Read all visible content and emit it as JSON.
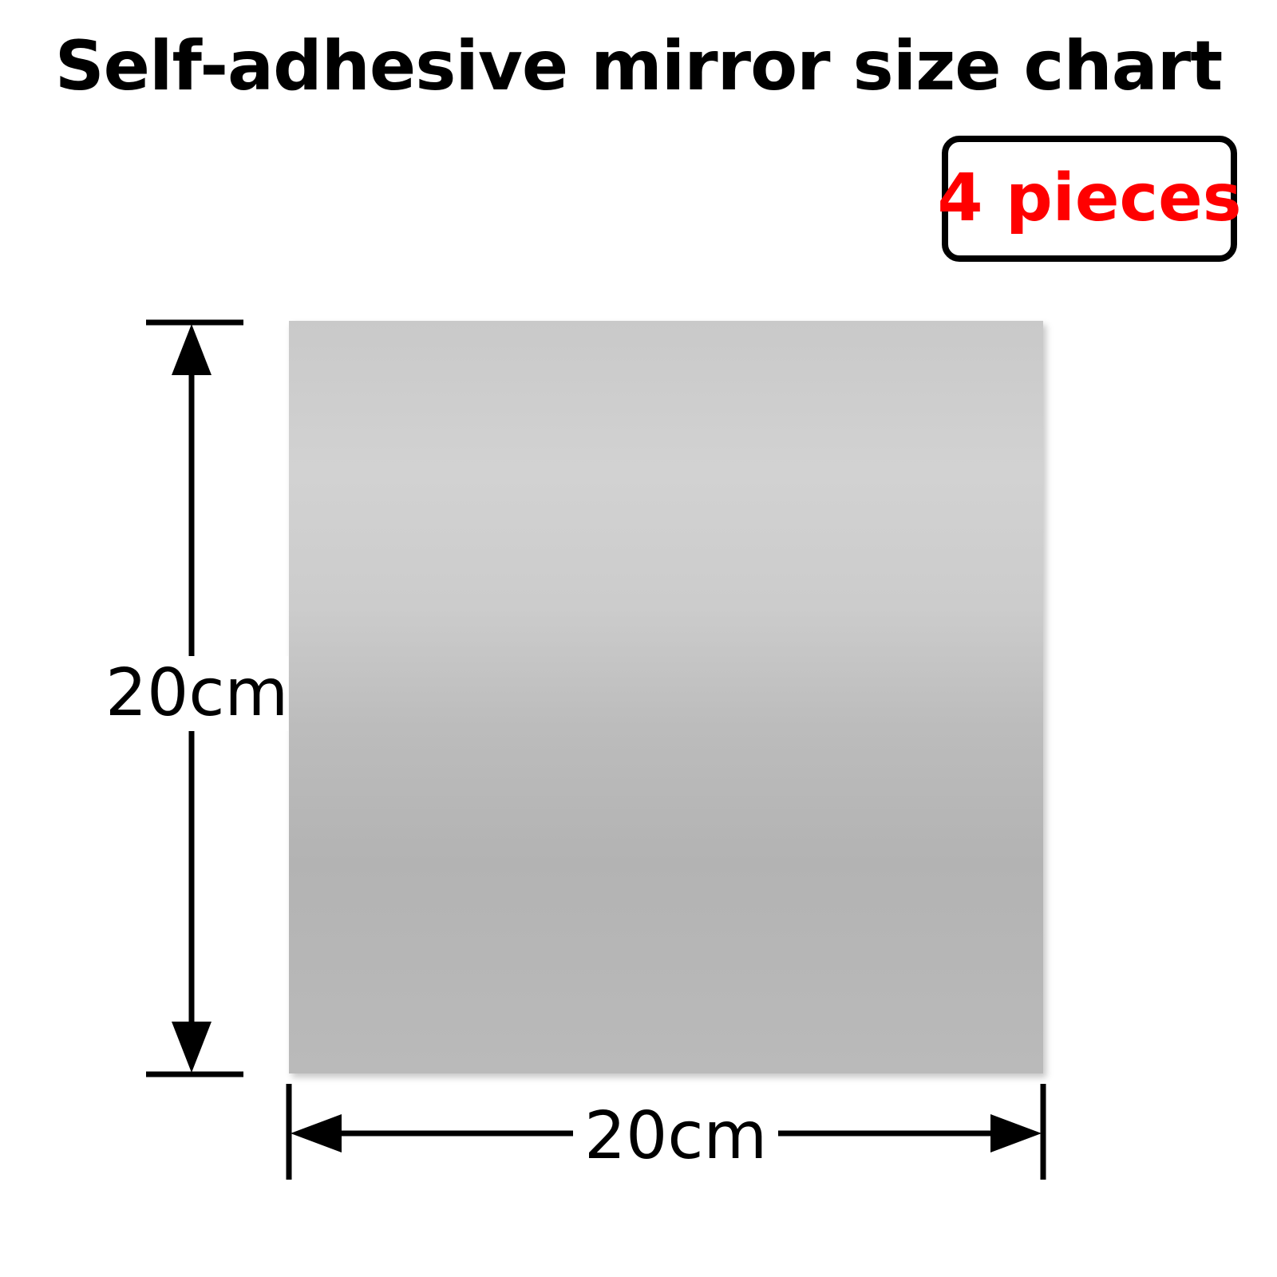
{
  "title": "Self-adhesive mirror size chart",
  "quantity_label": "4 pieces",
  "dimensions": {
    "height_label": "20cm",
    "width_label": "20cm"
  },
  "colors": {
    "quantity_text": "#ff0000",
    "mirror_light": "#d2d2d2",
    "mirror_dark": "#b3b3b3"
  }
}
